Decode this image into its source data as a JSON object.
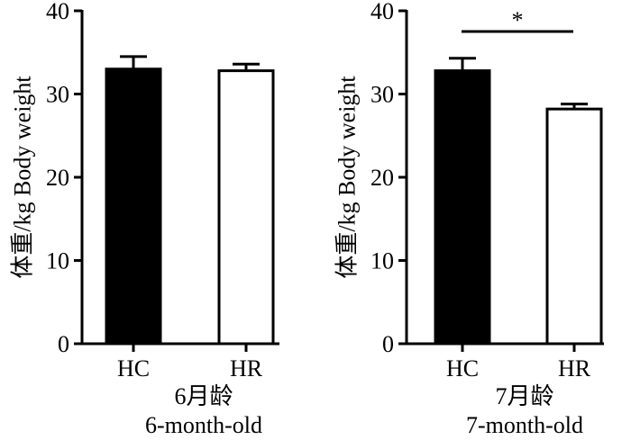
{
  "chart_data": [
    {
      "type": "bar",
      "ylabel": "体重/kg Body weight",
      "xlabel_cn": "6月龄",
      "xlabel_en": "6-month-old",
      "categories": [
        "HC",
        "HR"
      ],
      "values": [
        33.0,
        32.8
      ],
      "errors": [
        1.5,
        0.8
      ],
      "fills": [
        "#000000",
        "#ffffff"
      ],
      "ylim": [
        0,
        40
      ],
      "yticks": [
        "0",
        "10",
        "20",
        "30",
        "40"
      ],
      "significance": null
    },
    {
      "type": "bar",
      "ylabel": "体重/kg Body weight",
      "xlabel_cn": "7月龄",
      "xlabel_en": "7-month-old",
      "categories": [
        "HC",
        "HR"
      ],
      "values": [
        32.8,
        28.2
      ],
      "errors": [
        1.5,
        0.6
      ],
      "fills": [
        "#000000",
        "#ffffff"
      ],
      "ylim": [
        0,
        40
      ],
      "yticks": [
        "0",
        "10",
        "20",
        "30",
        "40"
      ],
      "significance": "*"
    }
  ]
}
